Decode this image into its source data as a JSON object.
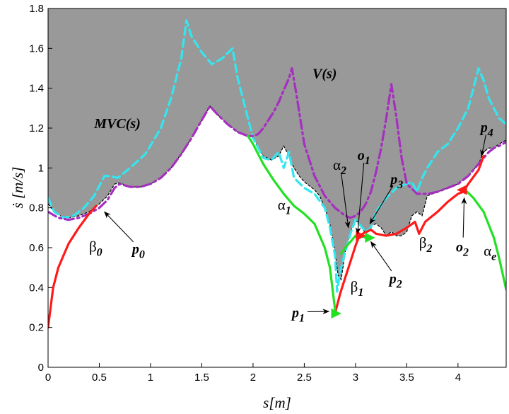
{
  "chart_data": {
    "type": "line",
    "xlabel": "s[m]",
    "ylabel": "ṡ [m/s]",
    "xlim": [
      0,
      4.47
    ],
    "ylim": [
      0,
      1.8
    ],
    "xticks": [
      "0",
      "0.5",
      "1",
      "1.5",
      "2",
      "2.5",
      "3",
      "3.5",
      "4"
    ],
    "xtick_values": [
      0,
      0.5,
      1,
      1.5,
      2,
      2.5,
      3,
      3.5,
      4
    ],
    "yticks": [
      "0",
      "0.2",
      "0.4",
      "0.6",
      "0.8",
      "1",
      "1.2",
      "1.4",
      "1.6",
      "1.8"
    ],
    "ytick_values": [
      0,
      0.2,
      0.4,
      0.6,
      0.8,
      1.0,
      1.2,
      1.4,
      1.6,
      1.8
    ],
    "grid": false,
    "colors": {
      "mvc_fill": "#999999",
      "mvc_line": "#000000",
      "cyan_dashed": "#33e6f0",
      "v_curve": "#a62ec0",
      "red": "#ff1a1a",
      "green": "#22e022"
    },
    "series": [
      {
        "style": "mvc-region",
        "x": [
          0,
          0.06,
          0.12,
          0.2,
          0.3,
          0.4,
          0.5,
          0.58,
          0.65,
          0.7,
          0.8,
          0.9,
          1.0,
          1.1,
          1.2,
          1.3,
          1.4,
          1.5,
          1.58,
          1.65,
          1.75,
          1.85,
          1.95,
          2.0,
          2.05,
          2.1,
          2.18,
          2.25,
          2.3,
          2.33,
          2.4,
          2.45,
          2.5,
          2.55,
          2.6,
          2.65,
          2.7,
          2.75,
          2.8,
          2.83,
          2.86,
          2.9,
          2.95,
          3.0,
          3.05,
          3.1,
          3.15,
          3.2,
          3.25,
          3.3,
          3.35,
          3.4,
          3.45,
          3.5,
          3.55,
          3.6,
          3.65,
          3.7,
          3.8,
          3.9,
          4.0,
          4.1,
          4.2,
          4.25,
          4.3,
          4.35,
          4.4,
          4.47
        ],
        "y": [
          0.82,
          0.78,
          0.76,
          0.75,
          0.76,
          0.78,
          0.82,
          0.86,
          0.92,
          0.925,
          0.905,
          0.905,
          0.92,
          0.95,
          1.0,
          1.07,
          1.15,
          1.24,
          1.31,
          1.27,
          1.22,
          1.18,
          1.16,
          1.16,
          1.1,
          1.06,
          1.04,
          1.06,
          1.11,
          1.08,
          1.0,
          0.96,
          0.93,
          0.91,
          0.89,
          0.86,
          0.8,
          0.72,
          0.58,
          0.46,
          0.44,
          0.58,
          0.68,
          0.74,
          0.71,
          0.67,
          0.71,
          0.72,
          0.7,
          0.66,
          0.68,
          0.66,
          0.66,
          0.68,
          0.76,
          0.78,
          0.76,
          0.86,
          0.88,
          0.9,
          0.92,
          0.96,
          1.02,
          1.08,
          1.1,
          1.1,
          1.12,
          1.14
        ]
      },
      {
        "style": "cyan-dashed",
        "x": [
          0,
          0.06,
          0.15,
          0.25,
          0.35,
          0.45,
          0.55,
          0.6,
          0.68,
          0.8,
          0.95,
          1.1,
          1.2,
          1.3,
          1.35,
          1.4,
          1.5,
          1.6,
          1.7,
          1.8,
          1.85,
          1.95,
          2.0,
          2.05,
          2.1,
          2.18,
          2.25,
          2.3,
          2.35,
          2.4,
          2.5,
          2.6,
          2.7,
          2.75,
          2.8,
          2.82,
          2.85,
          2.9,
          2.95,
          3.0,
          3.05,
          3.1,
          3.15,
          3.2,
          3.3,
          3.4,
          3.5,
          3.55,
          3.6,
          3.65,
          3.7,
          3.8,
          3.9,
          4.0,
          4.1,
          4.2,
          4.25,
          4.3,
          4.35,
          4.4,
          4.47
        ],
        "y": [
          0.85,
          0.78,
          0.75,
          0.76,
          0.8,
          0.86,
          0.96,
          0.96,
          0.95,
          1.0,
          1.07,
          1.2,
          1.35,
          1.55,
          1.74,
          1.66,
          1.58,
          1.52,
          1.55,
          1.6,
          1.45,
          1.25,
          1.15,
          1.1,
          1.05,
          1.04,
          1.08,
          1.0,
          1.08,
          0.95,
          0.9,
          0.87,
          0.8,
          0.7,
          0.56,
          0.38,
          0.48,
          0.58,
          0.67,
          0.74,
          0.71,
          0.68,
          0.7,
          0.78,
          0.85,
          0.9,
          0.92,
          0.93,
          0.88,
          0.95,
          1.0,
          1.08,
          1.12,
          1.2,
          1.3,
          1.5,
          1.44,
          1.35,
          1.3,
          1.25,
          1.22
        ]
      },
      {
        "style": "v-dashdot",
        "x": [
          0,
          0.1,
          0.2,
          0.3,
          0.4,
          0.5,
          0.58,
          0.65,
          0.7,
          0.8,
          0.9,
          1.0,
          1.1,
          1.2,
          1.3,
          1.4,
          1.5,
          1.58,
          1.65,
          1.75,
          1.85,
          1.95,
          2.0,
          2.05,
          2.1,
          2.15,
          2.2,
          2.25,
          2.3,
          2.35,
          2.38,
          2.42,
          2.5,
          2.6,
          2.7,
          2.8,
          2.9,
          2.95,
          3.0,
          3.05,
          3.1,
          3.15,
          3.2,
          3.25,
          3.3,
          3.35,
          3.4,
          3.45,
          3.5,
          3.6,
          3.7,
          3.8,
          3.9,
          4.0,
          4.1,
          4.2,
          4.25,
          4.3,
          4.35,
          4.4,
          4.47
        ],
        "y": [
          0.78,
          0.75,
          0.74,
          0.75,
          0.77,
          0.8,
          0.84,
          0.9,
          0.92,
          0.905,
          0.905,
          0.92,
          0.95,
          1.0,
          1.07,
          1.15,
          1.24,
          1.31,
          1.27,
          1.22,
          1.18,
          1.16,
          1.16,
          1.17,
          1.2,
          1.24,
          1.28,
          1.33,
          1.39,
          1.45,
          1.5,
          1.38,
          1.12,
          0.96,
          0.86,
          0.8,
          0.76,
          0.75,
          0.76,
          0.78,
          0.82,
          0.88,
          0.98,
          1.1,
          1.25,
          1.42,
          1.25,
          1.05,
          0.92,
          0.87,
          0.87,
          0.88,
          0.9,
          0.92,
          0.96,
          1.02,
          1.05,
          1.08,
          1.1,
          1.11,
          1.13
        ]
      },
      {
        "style": "red",
        "x": [
          0,
          0.05,
          0.1,
          0.15,
          0.2,
          0.3,
          0.4,
          0.47
        ],
        "y": [
          0.2,
          0.4,
          0.5,
          0.56,
          0.62,
          0.7,
          0.77,
          0.81
        ]
      },
      {
        "style": "red",
        "x": [
          2.8,
          2.85,
          2.9,
          2.95,
          3.0,
          3.03,
          3.07,
          3.11,
          3.15,
          3.2,
          3.3,
          3.4,
          3.5,
          3.58,
          3.62,
          3.68,
          3.8,
          3.9,
          4.0,
          4.05,
          4.1,
          4.2,
          4.25
        ],
        "y": [
          0.27,
          0.37,
          0.45,
          0.53,
          0.61,
          0.65,
          0.67,
          0.68,
          0.69,
          0.67,
          0.66,
          0.67,
          0.7,
          0.73,
          0.67,
          0.73,
          0.78,
          0.83,
          0.87,
          0.88,
          0.92,
          0.99,
          1.06
        ]
      },
      {
        "style": "green",
        "x": [
          1.95,
          2.0,
          2.1,
          2.2,
          2.3,
          2.4,
          2.5,
          2.6,
          2.7,
          2.75,
          2.8
        ],
        "y": [
          1.16,
          1.12,
          1.02,
          0.94,
          0.87,
          0.81,
          0.77,
          0.72,
          0.6,
          0.5,
          0.29
        ]
      },
      {
        "style": "green",
        "x": [
          2.86,
          2.9,
          2.95,
          3.0,
          3.05,
          3.1
        ],
        "y": [
          0.57,
          0.6,
          0.63,
          0.66,
          0.66,
          0.65
        ]
      },
      {
        "style": "green",
        "x": [
          4.05,
          4.15,
          4.25,
          4.35,
          4.4,
          4.47
        ],
        "y": [
          0.9,
          0.85,
          0.78,
          0.65,
          0.55,
          0.39
        ]
      }
    ],
    "markers": [
      {
        "style": "green",
        "x": 2.8,
        "y": 0.27,
        "dir": "right"
      },
      {
        "style": "green",
        "x": 3.13,
        "y": 0.65,
        "dir": "right"
      },
      {
        "style": "red",
        "x": 3.04,
        "y": 0.66,
        "dir": "right"
      },
      {
        "style": "red",
        "x": 4.05,
        "y": 0.89,
        "dir": "left"
      }
    ],
    "annotations": [
      {
        "text": "MVC(s)",
        "style": "bold-italic",
        "x": 0.45,
        "y": 1.2
      },
      {
        "text": "V(s)",
        "style": "bold-italic",
        "x": 2.58,
        "y": 1.45
      },
      {
        "text": "p",
        "sub": "0",
        "style": "bold-italic",
        "x": 0.82,
        "y": 0.57,
        "arrow_to": [
          0.55,
          0.78
        ]
      },
      {
        "text": "β",
        "sub": "0",
        "style": "greek-italic-sub",
        "x": 0.4,
        "y": 0.58
      },
      {
        "text": "α",
        "sub": "1",
        "style": "greek-italic-sub",
        "x": 2.24,
        "y": 0.79
      },
      {
        "text": "p",
        "sub": "1",
        "style": "bold-italic",
        "x": 2.38,
        "y": 0.25,
        "arrow_to": [
          2.74,
          0.28
        ]
      },
      {
        "text": "β",
        "sub": "1",
        "style": "greek-italic-sub",
        "x": 2.95,
        "y": 0.38
      },
      {
        "text": "α",
        "sub": "2",
        "style": "greek-italic-sub",
        "x": 2.78,
        "y": 0.99,
        "arrow_to": [
          2.93,
          0.7
        ]
      },
      {
        "text": "o",
        "sub": "1",
        "style": "bold-italic",
        "x": 3.02,
        "y": 1.04,
        "arrow_to": [
          3.02,
          0.67
        ]
      },
      {
        "text": "p",
        "sub": "3",
        "style": "bold-italic",
        "x": 3.34,
        "y": 0.92,
        "arrow_to": [
          3.14,
          0.72
        ]
      },
      {
        "text": "p",
        "sub": "2",
        "style": "bold-italic",
        "x": 3.33,
        "y": 0.42,
        "arrow_to": [
          3.15,
          0.63
        ]
      },
      {
        "text": "β",
        "sub": "2",
        "style": "greek-italic-sub",
        "x": 3.62,
        "y": 0.6
      },
      {
        "text": "o",
        "sub": "2",
        "style": "bold-italic",
        "x": 3.98,
        "y": 0.58,
        "arrow_to": [
          4.06,
          0.85
        ]
      },
      {
        "text": "α",
        "sub": "e",
        "style": "greek-italic-sub",
        "x": 4.25,
        "y": 0.56
      },
      {
        "text": "p",
        "sub": "4",
        "style": "bold-italic",
        "x": 4.22,
        "y": 1.18,
        "arrow_to": [
          4.23,
          1.06
        ]
      }
    ]
  }
}
